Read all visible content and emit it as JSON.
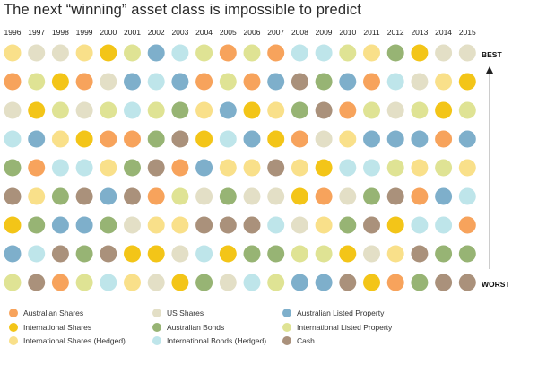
{
  "title": "The next “winning” asset class is impossible to predict",
  "colors": {
    "AS": "#F7A35C",
    "IS": "#F3C518",
    "ISH": "#F9E08A",
    "US": "#E3DFC6",
    "AB": "#97B474",
    "IBH": "#BEE5EA",
    "ALP": "#7EAFCB",
    "ILP": "#DFE394",
    "C": "#AA917B"
  },
  "legend": [
    {
      "key": "AS",
      "label": "Australian Shares"
    },
    {
      "key": "IS",
      "label": "International Shares"
    },
    {
      "key": "ISH",
      "label": "International Shares (Hedged)"
    },
    {
      "key": "US",
      "label": "US Shares"
    },
    {
      "key": "AB",
      "label": "Australian Bonds"
    },
    {
      "key": "IBH",
      "label": "International Bonds (Hedged)"
    },
    {
      "key": "ALP",
      "label": "Australian Listed Property"
    },
    {
      "key": "ILP",
      "label": "International Listed Property"
    },
    {
      "key": "C",
      "label": "Cash"
    }
  ],
  "axis": {
    "best_label": "BEST",
    "worst_label": "WORST"
  },
  "chart_data": {
    "type": "table",
    "title": "The next “winning” asset class is impossible to predict",
    "xlabel": "",
    "ylabel": "",
    "years": [
      "1996",
      "1997",
      "1998",
      "1999",
      "2000",
      "2001",
      "2002",
      "2003",
      "2004",
      "2005",
      "2006",
      "2007",
      "2008",
      "2009",
      "2010",
      "2011",
      "2012",
      "2013",
      "2014",
      "2015"
    ],
    "ranking_order": "best-to-worst",
    "rankings": {
      "1996": [
        "ISH",
        "AS",
        "US",
        "IBH",
        "AB",
        "C",
        "IS",
        "ALP",
        "ILP"
      ],
      "1997": [
        "US",
        "ILP",
        "IS",
        "ALP",
        "AS",
        "ISH",
        "AB",
        "IBH",
        "C"
      ],
      "1998": [
        "US",
        "IS",
        "ILP",
        "ISH",
        "IBH",
        "AB",
        "ALP",
        "C",
        "AS"
      ],
      "1999": [
        "ISH",
        "AS",
        "US",
        "IS",
        "IBH",
        "C",
        "ALP",
        "AB",
        "ILP"
      ],
      "2000": [
        "IS",
        "US",
        "ILP",
        "AS",
        "ISH",
        "ALP",
        "AB",
        "C",
        "IBH"
      ],
      "2001": [
        "ILP",
        "ALP",
        "IBH",
        "AS",
        "AB",
        "C",
        "US",
        "IS",
        "ISH"
      ],
      "2002": [
        "ALP",
        "IBH",
        "ILP",
        "AB",
        "C",
        "AS",
        "ISH",
        "IS",
        "US"
      ],
      "2003": [
        "IBH",
        "ALP",
        "AB",
        "C",
        "AS",
        "ILP",
        "ISH",
        "US",
        "IS"
      ],
      "2004": [
        "ILP",
        "AS",
        "ISH",
        "IS",
        "ALP",
        "US",
        "C",
        "IBH",
        "AB"
      ],
      "2005": [
        "AS",
        "ILP",
        "ALP",
        "IBH",
        "ISH",
        "AB",
        "C",
        "IS",
        "US"
      ],
      "2006": [
        "ILP",
        "AS",
        "IS",
        "ALP",
        "ISH",
        "US",
        "C",
        "AB",
        "IBH"
      ],
      "2007": [
        "AS",
        "ALP",
        "ISH",
        "IS",
        "C",
        "US",
        "IBH",
        "AB",
        "ILP"
      ],
      "2008": [
        "IBH",
        "C",
        "AB",
        "AS",
        "ISH",
        "IS",
        "US",
        "ILP",
        "ALP"
      ],
      "2009": [
        "IBH",
        "AB",
        "C",
        "US",
        "IS",
        "AS",
        "ISH",
        "ILP",
        "ALP"
      ],
      "2010": [
        "ILP",
        "ALP",
        "AS",
        "ISH",
        "IBH",
        "US",
        "AB",
        "IS",
        "C"
      ],
      "2011": [
        "ISH",
        "AS",
        "ILP",
        "ALP",
        "IBH",
        "AB",
        "C",
        "US",
        "IS"
      ],
      "2012": [
        "AB",
        "IBH",
        "US",
        "ALP",
        "ILP",
        "C",
        "IS",
        "ISH",
        "AS"
      ],
      "2013": [
        "IS",
        "US",
        "ILP",
        "ALP",
        "ISH",
        "AS",
        "IBH",
        "C",
        "AB"
      ],
      "2014": [
        "US",
        "ISH",
        "IS",
        "AS",
        "ILP",
        "ALP",
        "IBH",
        "AB",
        "C"
      ],
      "2015": [
        "US",
        "IS",
        "ILP",
        "ALP",
        "ISH",
        "IBH",
        "AS",
        "AB",
        "C"
      ]
    },
    "legend_position": "bottom"
  }
}
